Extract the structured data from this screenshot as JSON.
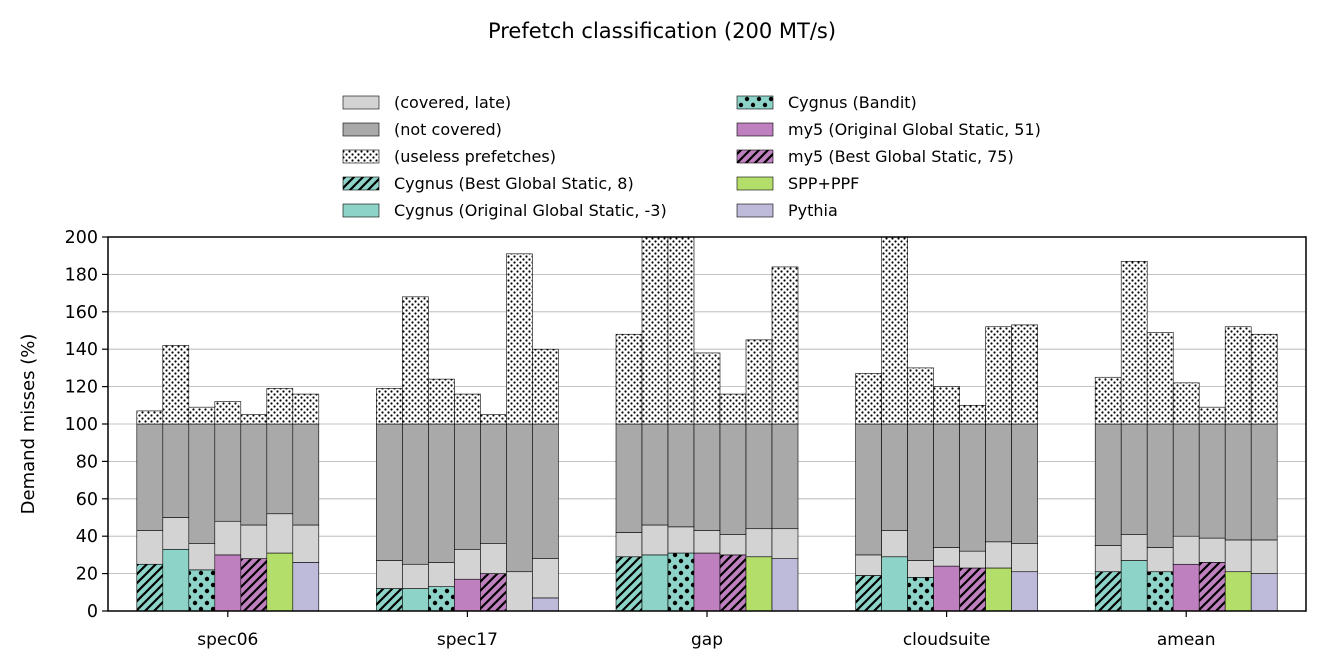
{
  "chart_data": {
    "type": "bar",
    "title": "Prefetch classification (200 MT/s)",
    "ylabel": "Demand misses (%)",
    "xlabel": "",
    "ylim": [
      0,
      200
    ],
    "yticks": [
      0,
      20,
      40,
      60,
      80,
      100,
      120,
      140,
      160,
      180,
      200
    ],
    "grid": "horizontal",
    "legend_position": "top",
    "categories": [
      "spec06",
      "spec17",
      "gap",
      "cloudsuite",
      "amean"
    ],
    "components": [
      {
        "key": "covered_late",
        "name": "(covered, late)",
        "color": "#d3d3d3",
        "pattern": "none"
      },
      {
        "key": "not_covered",
        "name": "(not covered)",
        "color": "#a9a9a9",
        "pattern": "none"
      },
      {
        "key": "useless",
        "name": "(useless prefetches)",
        "color": "#ffffff",
        "pattern": "dots"
      }
    ],
    "series": [
      {
        "name": "Cygnus (Best Global Static, 8)",
        "color": "#8dd3c7",
        "pattern": "hatch",
        "covered": [
          25,
          12,
          29,
          19,
          21
        ],
        "covered_late": [
          18,
          15,
          13,
          11,
          14
        ],
        "useless": [
          7,
          19,
          48,
          27,
          25
        ]
      },
      {
        "name": "Cygnus (Original Global Static, -3)",
        "color": "#8dd3c7",
        "pattern": "none",
        "covered": [
          33,
          12,
          30,
          29,
          27
        ],
        "covered_late": [
          17,
          13,
          16,
          14,
          14
        ],
        "useless": [
          42,
          68,
          100,
          100,
          87
        ]
      },
      {
        "name": "Cygnus (Bandit)",
        "color": "#8dd3c7",
        "pattern": "bigdots",
        "covered": [
          22,
          13,
          31,
          18,
          21
        ],
        "covered_late": [
          14,
          13,
          14,
          9,
          13
        ],
        "useless": [
          9,
          24,
          100,
          30,
          49
        ]
      },
      {
        "name": "my5 (Original Global Static, 51)",
        "color": "#bf80bf",
        "pattern": "none",
        "covered": [
          30,
          17,
          31,
          24,
          25
        ],
        "covered_late": [
          18,
          16,
          12,
          10,
          15
        ],
        "useless": [
          12,
          16,
          38,
          20,
          22
        ]
      },
      {
        "name": "my5 (Best Global Static, 75)",
        "color": "#bf80bf",
        "pattern": "hatch",
        "covered": [
          28,
          20,
          30,
          23,
          26
        ],
        "covered_late": [
          18,
          16,
          11,
          9,
          13
        ],
        "useless": [
          5,
          5,
          16,
          10,
          9
        ]
      },
      {
        "name": "SPP+PPF",
        "color": "#b3de69",
        "pattern": "none",
        "covered": [
          31,
          0,
          29,
          23,
          21
        ],
        "covered_late": [
          21,
          21,
          15,
          14,
          17
        ],
        "useless": [
          19,
          91,
          45,
          52,
          52
        ]
      },
      {
        "name": "Pythia",
        "color": "#bebada",
        "pattern": "none",
        "covered": [
          26,
          7,
          28,
          21,
          20
        ],
        "covered_late": [
          20,
          21,
          16,
          15,
          18
        ],
        "useless": [
          16,
          40,
          84,
          53,
          48
        ]
      }
    ],
    "legend": [
      "(covered, late)",
      "(not covered)",
      "(useless prefetches)",
      "Cygnus (Best Global Static, 8)",
      "Cygnus (Original Global Static, -3)",
      "Cygnus (Bandit)",
      "my5 (Original Global Static, 51)",
      "my5 (Best Global Static, 75)",
      "SPP+PPF",
      "Pythia"
    ]
  }
}
